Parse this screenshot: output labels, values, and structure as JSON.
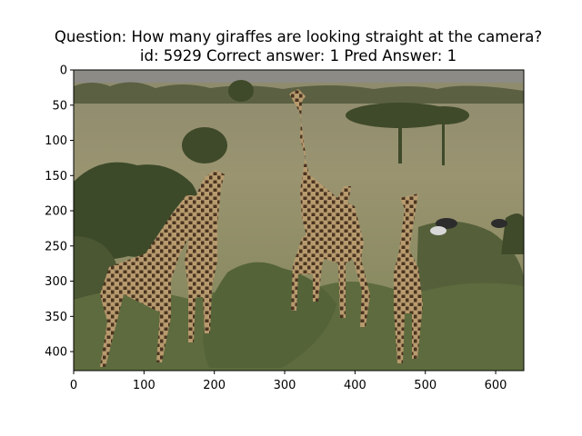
{
  "title": {
    "line1": "Question: How many giraffes are looking straight at the camera?",
    "line2": "id: 5929 Correct answer: 1 Pred Answer: 1"
  },
  "axes": {
    "image_width": 640,
    "image_height": 427,
    "x_ticks": [
      0,
      100,
      200,
      300,
      400,
      500,
      600
    ],
    "y_ticks": [
      0,
      50,
      100,
      150,
      200,
      250,
      300,
      350,
      400
    ]
  },
  "colors": {
    "sky": "#8c8b86",
    "far_plain": "#8d8a6e",
    "grass": "#9a9470",
    "foreground": "#5e6b3e",
    "tree_dark": "#3f4a2a",
    "giraffe_body": "#b79a6e",
    "giraffe_spot": "#4a3420"
  }
}
